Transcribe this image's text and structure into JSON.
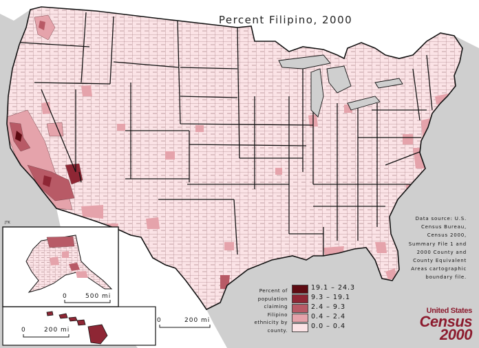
{
  "map": {
    "title": "Percent Filipino, 2000",
    "credit": "JTK",
    "source_lines": [
      "Data source: U.S.",
      "Census Bureau,",
      "Census 2000,",
      "Summary File 1 and",
      "2000 County and",
      "County Equivalent",
      "Areas cartographic",
      "boundary file."
    ],
    "legend": {
      "label_lines": [
        "Percent of",
        "population",
        "claiming",
        "Filipino",
        "ethnicity by",
        "county."
      ],
      "classes": [
        {
          "range": "19.1 – 24.3",
          "color": "#5e0b12"
        },
        {
          "range": "9.3 – 19.1",
          "color": "#8e2634"
        },
        {
          "range": "2.4 – 9.3",
          "color": "#b85a66"
        },
        {
          "range": "0.4 – 2.4",
          "color": "#e5a3ab"
        },
        {
          "range": "0.0 – 0.4",
          "color": "#fbe3e6"
        }
      ]
    },
    "scales": {
      "main": {
        "zero": "0",
        "distance": "200 mi"
      },
      "alaska": {
        "zero": "0",
        "distance": "500 mi"
      },
      "hawaii": {
        "zero": "0",
        "distance": "200 mi"
      }
    },
    "logo": {
      "line1": "United States",
      "line2": "Census",
      "line3": "2000"
    },
    "colors": {
      "water": "#cfcfcf",
      "land_outside": "#ffffff",
      "county_border": "#4a2a2e",
      "state_border": "#111111"
    }
  }
}
